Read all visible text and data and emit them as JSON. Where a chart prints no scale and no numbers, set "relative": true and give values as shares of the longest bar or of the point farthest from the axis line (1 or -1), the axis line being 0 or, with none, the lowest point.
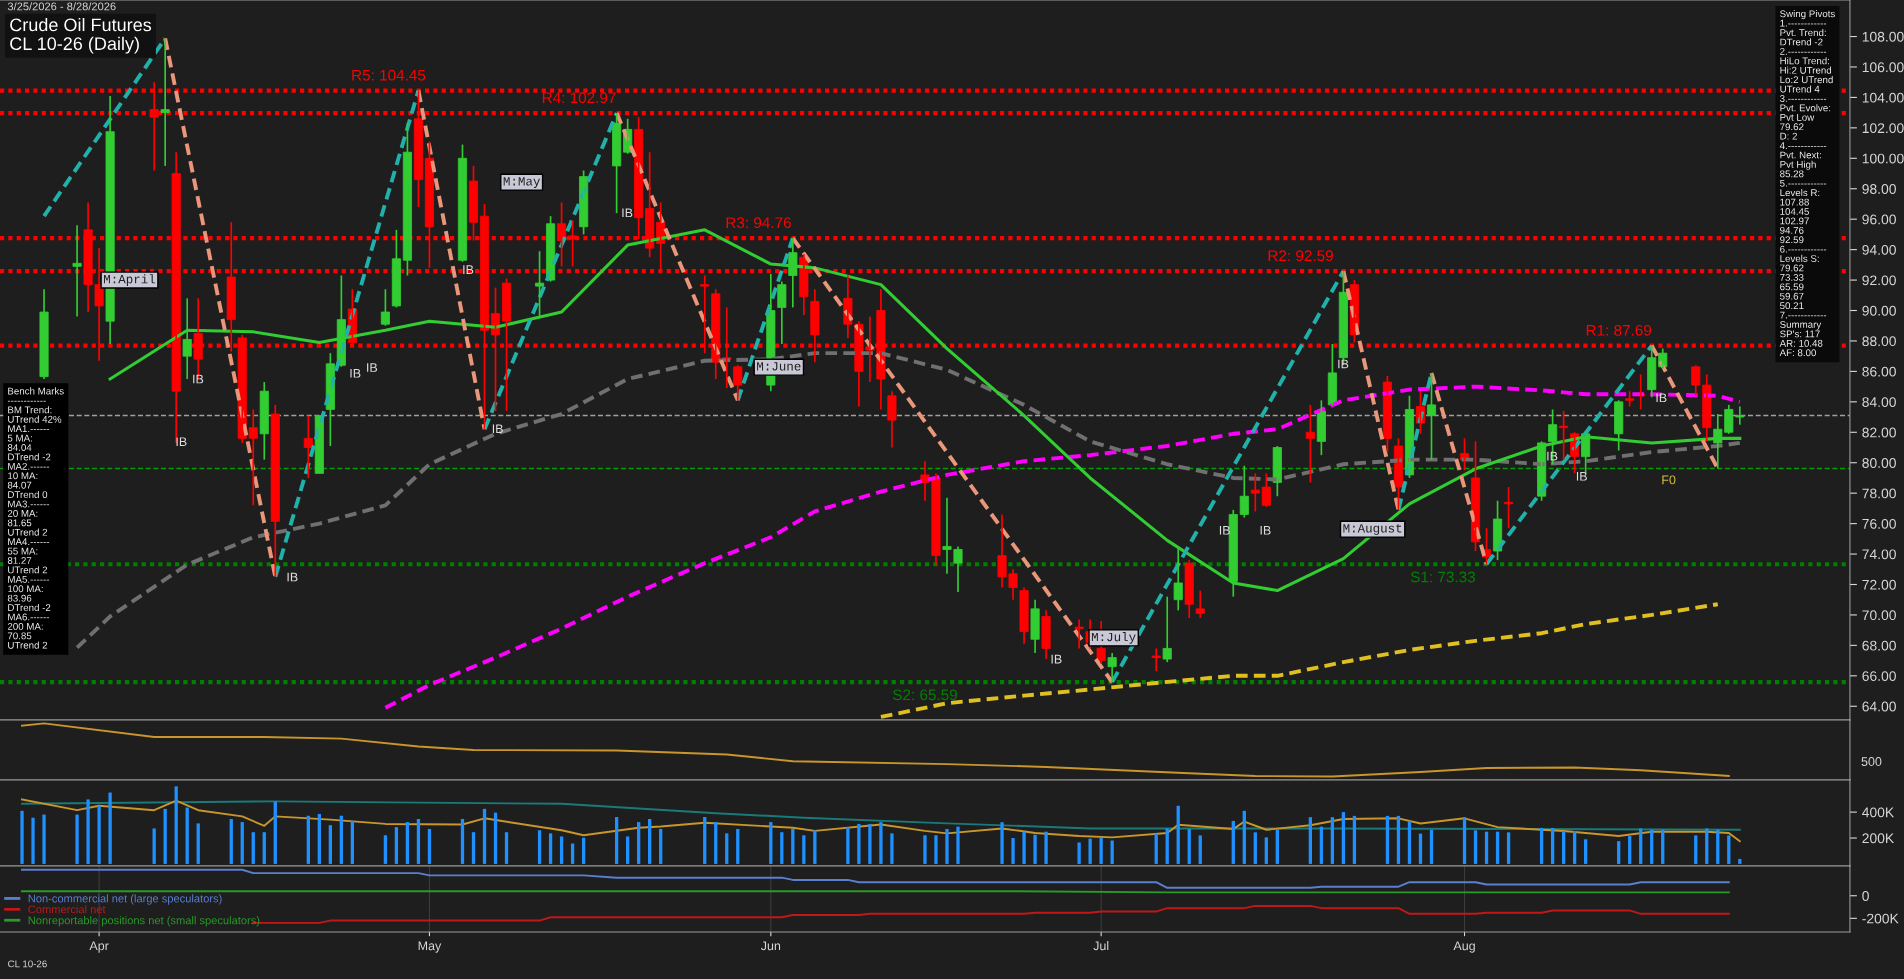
{
  "chart_data": [
    {
      "type": "candlestick",
      "title": "Crude Oil Futures\nCL 10-26 (Daily)",
      "x": [
        "2026-03-27",
        "2026-03-30",
        "2026-03-31",
        "2026-04-01",
        "2026-04-02",
        "2026-04-06",
        "2026-04-07",
        "2026-04-08",
        "2026-04-09",
        "2026-04-10",
        "2026-04-13",
        "2026-04-14",
        "2026-04-15",
        "2026-04-16",
        "2026-04-17",
        "2026-04-20",
        "2026-04-21",
        "2026-04-22",
        "2026-04-23",
        "2026-04-24",
        "2026-04-27",
        "2026-04-28",
        "2026-04-29",
        "2026-04-30",
        "2026-05-01",
        "2026-05-04",
        "2026-05-05",
        "2026-05-06",
        "2026-05-07",
        "2026-05-08",
        "2026-05-11",
        "2026-05-12",
        "2026-05-13",
        "2026-05-14",
        "2026-05-15",
        "2026-05-18",
        "2026-05-19",
        "2026-05-20",
        "2026-05-21",
        "2026-05-22",
        "2026-05-26",
        "2026-05-27",
        "2026-05-28",
        "2026-05-29",
        "2026-06-01",
        "2026-06-02",
        "2026-06-03",
        "2026-06-04",
        "2026-06-05",
        "2026-06-08",
        "2026-06-09",
        "2026-06-10",
        "2026-06-11",
        "2026-06-12",
        "2026-06-15",
        "2026-06-16",
        "2026-06-17",
        "2026-06-18",
        "2026-06-22",
        "2026-06-23",
        "2026-06-24",
        "2026-06-25",
        "2026-06-26",
        "2026-06-29",
        "2026-06-30",
        "2026-07-01",
        "2026-07-02",
        "2026-07-06",
        "2026-07-07",
        "2026-07-08",
        "2026-07-09",
        "2026-07-10",
        "2026-07-13",
        "2026-07-14",
        "2026-07-15",
        "2026-07-16",
        "2026-07-17",
        "2026-07-20",
        "2026-07-21",
        "2026-07-22",
        "2026-07-23",
        "2026-07-24",
        "2026-07-27",
        "2026-07-28",
        "2026-07-29",
        "2026-07-30",
        "2026-07-31",
        "2026-08-03",
        "2026-08-04",
        "2026-08-05",
        "2026-08-06",
        "2026-08-07",
        "2026-08-10",
        "2026-08-11",
        "2026-08-12",
        "2026-08-13",
        "2026-08-14",
        "2026-08-17",
        "2026-08-18",
        "2026-08-19",
        "2026-08-20",
        "2026-08-21",
        "2026-08-24",
        "2026-08-25",
        "2026-08-26",
        "2026-08-27",
        "2026-08-28"
      ],
      "ohlc": [
        [
          85.66,
          91.4,
          85.5,
          89.9
        ],
        [
          92.9,
          95.6,
          89.6,
          93.1
        ],
        [
          95.3,
          97.1,
          89.9,
          91.7
        ],
        [
          91.7,
          94.1,
          86.7,
          90.3
        ],
        [
          89.3,
          104.1,
          87.8,
          101.75
        ],
        [
          103.2,
          105.0,
          99.2,
          102.7
        ],
        [
          103.0,
          107.88,
          99.5,
          103.2
        ],
        [
          99.0,
          100.4,
          81.3,
          84.7
        ],
        [
          87.0,
          90.8,
          85.5,
          88.1
        ],
        [
          88.5,
          90.8,
          85.5,
          86.8
        ],
        [
          92.2,
          95.8,
          87.3,
          89.4
        ],
        [
          88.2,
          88.4,
          81.3,
          81.6
        ],
        [
          82.3,
          83.5,
          77.2,
          81.6
        ],
        [
          81.9,
          85.3,
          80.2,
          84.7
        ],
        [
          83.2,
          83.8,
          72.5,
          76.15
        ],
        [
          81.6,
          83.1,
          79.0,
          81.0
        ],
        [
          79.3,
          83.1,
          79.3,
          83.1
        ],
        [
          83.5,
          87.2,
          81.1,
          86.5
        ],
        [
          86.4,
          92.3,
          86.3,
          89.4
        ],
        [
          90.1,
          91.4,
          87.8,
          87.9
        ],
        [
          89.1,
          91.4,
          89.0,
          89.9
        ],
        [
          90.3,
          95.3,
          90.2,
          93.4
        ],
        [
          93.3,
          102.3,
          92.3,
          100.4
        ],
        [
          102.6,
          104.45,
          96.8,
          98.6
        ],
        [
          100.0,
          101.1,
          92.8,
          95.5
        ],
        [
          93.3,
          100.9,
          93.2,
          100.0
        ],
        [
          98.5,
          99.5,
          94.6,
          95.8
        ],
        [
          96.2,
          97.0,
          82.2,
          88.7
        ],
        [
          89.8,
          91.5,
          83.4,
          88.4
        ],
        [
          91.8,
          92.1,
          83.4,
          89.3
        ],
        [
          91.6,
          93.9,
          89.6,
          91.8
        ],
        [
          92.0,
          96.2,
          91.9,
          95.7
        ],
        [
          95.7,
          97.1,
          92.9,
          94.6
        ],
        [
          94.9,
          95.9,
          92.9,
          94.7
        ],
        [
          95.5,
          99.2,
          95.0,
          98.8
        ],
        [
          99.5,
          102.97,
          96.4,
          102.3
        ],
        [
          100.4,
          102.6,
          100.3,
          101.9
        ],
        [
          101.9,
          102.7,
          94.7,
          96.1
        ],
        [
          96.7,
          100.4,
          93.5,
          94.1
        ],
        [
          95.8,
          97.1,
          92.6,
          94.4
        ],
        [
          91.7,
          92.3,
          87.2,
          91.6
        ],
        [
          91.1,
          91.4,
          85.5,
          86.6
        ],
        [
          86.9,
          90.2,
          84.9,
          86.8
        ],
        [
          86.3,
          86.4,
          84.1,
          85.1
        ],
        [
          85.1,
          92.4,
          84.7,
          90.0
        ],
        [
          90.2,
          91.9,
          87.8,
          91.7
        ],
        [
          92.3,
          94.76,
          90.2,
          93.8
        ],
        [
          93.5,
          93.7,
          89.7,
          90.9
        ],
        [
          90.6,
          91.4,
          86.6,
          88.4
        ],
        [
          90.8,
          92.3,
          88.2,
          89.1
        ],
        [
          89.1,
          89.3,
          83.7,
          86.0
        ],
        [
          87.6,
          89.6,
          85.3,
          87.4
        ],
        [
          90.0,
          91.4,
          83.5,
          85.5
        ],
        [
          84.4,
          84.7,
          81.0,
          82.8
        ],
        [
          79.2,
          80.1,
          77.5,
          78.7
        ],
        [
          79.0,
          79.3,
          73.3,
          73.9
        ],
        [
          74.3,
          77.7,
          72.7,
          74.5
        ],
        [
          73.4,
          74.5,
          71.5,
          74.3
        ],
        [
          73.9,
          76.6,
          71.8,
          72.5
        ],
        [
          72.7,
          73.0,
          71.0,
          71.8
        ],
        [
          71.6,
          71.8,
          68.1,
          68.9
        ],
        [
          68.4,
          71.0,
          67.5,
          70.4
        ],
        [
          69.9,
          70.3,
          67.1,
          67.8
        ],
        [
          69.2,
          69.7,
          67.8,
          69.1
        ],
        [
          68.9,
          69.7,
          67.8,
          68.2
        ],
        [
          67.8,
          69.6,
          66.8,
          67.0
        ],
        [
          66.6,
          67.5,
          65.59,
          67.2
        ],
        [
          67.3,
          67.8,
          66.3,
          67.2
        ],
        [
          67.1,
          71.2,
          66.9,
          67.8
        ],
        [
          71.0,
          74.5,
          70.3,
          72.1
        ],
        [
          73.4,
          73.6,
          69.8,
          70.7
        ],
        [
          70.4,
          71.6,
          69.8,
          70.1
        ],
        [
          72.2,
          76.9,
          71.2,
          76.6
        ],
        [
          76.6,
          79.8,
          76.4,
          77.8
        ],
        [
          78.2,
          79.3,
          76.8,
          78.0
        ],
        [
          78.4,
          79.3,
          77.1,
          77.2
        ],
        [
          78.7,
          81.1,
          77.8,
          81.0
        ],
        [
          82.0,
          83.8,
          78.7,
          81.6
        ],
        [
          81.4,
          84.1,
          80.5,
          83.4
        ],
        [
          83.8,
          87.8,
          83.8,
          85.9
        ],
        [
          86.9,
          92.59,
          86.4,
          91.2
        ],
        [
          91.7,
          92.0,
          87.9,
          88.4
        ],
        [
          85.3,
          85.7,
          80.7,
          81.6
        ],
        [
          81.1,
          81.6,
          76.9,
          78.4
        ],
        [
          79.2,
          84.4,
          79.0,
          83.5
        ],
        [
          83.7,
          84.7,
          81.9,
          82.6
        ],
        [
          83.1,
          85.9,
          80.2,
          83.8
        ],
        [
          80.6,
          81.6,
          79.5,
          80.2
        ],
        [
          79.0,
          81.4,
          74.2,
          74.8
        ],
        [
          74.3,
          75.7,
          73.33,
          73.8
        ],
        [
          74.2,
          77.5,
          73.6,
          76.3
        ],
        [
          77.4,
          78.4,
          75.7,
          77.3
        ],
        [
          77.8,
          81.4,
          77.5,
          81.3
        ],
        [
          81.4,
          83.5,
          79.9,
          82.5
        ],
        [
          82.4,
          83.4,
          80.2,
          82.3
        ],
        [
          81.9,
          82.0,
          79.3,
          80.4
        ],
        [
          80.4,
          82.0,
          79.3,
          81.9
        ],
        [
          81.9,
          84.1,
          80.8,
          84.0
        ],
        [
          84.2,
          84.7,
          83.7,
          84.1
        ],
        [
          84.5,
          85.8,
          83.5,
          84.4
        ],
        [
          84.8,
          87.69,
          84.3,
          86.9
        ],
        [
          86.3,
          87.5,
          86.2,
          87.2
        ],
        [
          86.3,
          86.4,
          84.4,
          85.1
        ],
        [
          85.1,
          85.8,
          81.4,
          82.3
        ],
        [
          81.3,
          83.2,
          79.62,
          82.2
        ],
        [
          82.0,
          83.8,
          81.9,
          83.5
        ],
        [
          83.0,
          83.7,
          82.5,
          83.1
        ]
      ],
      "colors": [
        "#32cd32",
        "#32cd32",
        "#ff0000",
        "#ff0000",
        "#32cd32",
        "#ff0000",
        "#32cd32",
        "#ff0000",
        "#32cd32",
        "#ff0000",
        "#ff0000",
        "#ff0000",
        "#ff0000",
        "#32cd32",
        "#ff0000",
        "#ff0000",
        "#32cd32",
        "#32cd32",
        "#32cd32",
        "#ff0000",
        "#32cd32",
        "#32cd32",
        "#32cd32",
        "#ff0000",
        "#ff0000",
        "#32cd32",
        "#ff0000",
        "#ff0000",
        "#ff0000",
        "#ff0000",
        "#32cd32",
        "#32cd32",
        "#ff0000",
        "#ff0000",
        "#32cd32",
        "#32cd32",
        "#32cd32",
        "#ff0000",
        "#ff0000",
        "#ff0000",
        "#ff0000",
        "#ff0000",
        "#ff0000",
        "#ff0000",
        "#32cd32",
        "#32cd32",
        "#32cd32",
        "#ff0000",
        "#ff0000",
        "#ff0000",
        "#ff0000",
        "#ff0000",
        "#ff0000",
        "#ff0000",
        "#ff0000",
        "#ff0000",
        "#32cd32",
        "#32cd32",
        "#ff0000",
        "#ff0000",
        "#ff0000",
        "#32cd32",
        "#ff0000",
        "#ff0000",
        "#ff0000",
        "#ff0000",
        "#32cd32",
        "#ff0000",
        "#32cd32",
        "#32cd32",
        "#ff0000",
        "#ff0000",
        "#32cd32",
        "#32cd32",
        "#ff0000",
        "#ff0000",
        "#32cd32",
        "#ff0000",
        "#32cd32",
        "#32cd32",
        "#32cd32",
        "#ff0000",
        "#ff0000",
        "#ff0000",
        "#32cd32",
        "#ff0000",
        "#32cd32",
        "#ff0000",
        "#ff0000",
        "#ff0000",
        "#32cd32",
        "#ff0000",
        "#32cd32",
        "#32cd32",
        "#ff0000",
        "#ff0000",
        "#32cd32",
        "#32cd32",
        "#ff0000",
        "#ff0000",
        "#32cd32",
        "#32cd32",
        "#ff0000",
        "#ff0000",
        "#32cd32",
        "#32cd32",
        "#32cd32"
      ],
      "series": [
        {
          "type": "line",
          "color": "#e0c020",
          "line_style": "dashed",
          "x": [
            "2026-06-11",
            "2026-06-17",
            "2026-06-24",
            "2026-06-30",
            "2026-07-07",
            "2026-07-13",
            "2026-07-17",
            "2026-07-23",
            "2026-07-29",
            "2026-08-04",
            "2026-08-10",
            "2026-08-14",
            "2026-08-20",
            "2026-08-26"
          ],
          "values": [
            63.3,
            64.2,
            64.7,
            65.1,
            65.6,
            66.0,
            66.0,
            66.9,
            67.7,
            68.3,
            68.8,
            69.4,
            70.0,
            70.7
          ]
        },
        {
          "type": "line",
          "color": "#ff00ff",
          "line_style": "dashed",
          "x": [
            "2026-04-27",
            "2026-05-01",
            "2026-05-07",
            "2026-05-13",
            "2026-05-19",
            "2026-05-26",
            "2026-06-01",
            "2026-06-05",
            "2026-06-11",
            "2026-06-17",
            "2026-06-24",
            "2026-06-30",
            "2026-07-07",
            "2026-07-13",
            "2026-07-17",
            "2026-07-23",
            "2026-07-29",
            "2026-08-04",
            "2026-08-10",
            "2026-08-14",
            "2026-08-20",
            "2026-08-26",
            "2026-08-28"
          ],
          "values": [
            63.9,
            65.4,
            67.2,
            69.1,
            71.2,
            73.4,
            75.1,
            76.8,
            78.1,
            79.2,
            80.1,
            80.5,
            81.1,
            81.9,
            82.2,
            84.1,
            84.8,
            85.0,
            84.75,
            84.5,
            84.5,
            84.4,
            84.0
          ]
        },
        {
          "type": "line",
          "color": "#707070",
          "line_style": "dashed",
          "x": [
            "2026-03-30",
            "2026-04-02",
            "2026-04-09",
            "2026-04-15",
            "2026-04-21",
            "2026-04-27",
            "2026-05-01",
            "2026-05-07",
            "2026-05-13",
            "2026-05-19",
            "2026-05-26",
            "2026-06-01",
            "2026-06-05",
            "2026-06-11",
            "2026-06-17",
            "2026-06-24",
            "2026-06-30",
            "2026-07-07",
            "2026-07-13",
            "2026-07-17",
            "2026-07-23",
            "2026-07-29",
            "2026-08-04",
            "2026-08-10",
            "2026-08-14",
            "2026-08-20",
            "2026-08-26",
            "2026-08-28"
          ],
          "values": [
            67.85,
            69.9,
            73.3,
            75.1,
            76.0,
            77.2,
            79.9,
            81.9,
            83.2,
            85.5,
            86.7,
            86.8,
            87.2,
            87.2,
            86.1,
            83.8,
            81.4,
            79.9,
            79.0,
            78.9,
            79.9,
            80.2,
            80.2,
            79.9,
            80.1,
            80.7,
            81.1,
            81.3
          ]
        },
        {
          "type": "line",
          "color": "#32cd32",
          "line_style": "solid",
          "x": [
            "2026-04-02",
            "2026-04-09",
            "2026-04-15",
            "2026-04-21",
            "2026-04-27",
            "2026-05-01",
            "2026-05-07",
            "2026-05-13",
            "2026-05-19",
            "2026-05-26",
            "2026-06-01",
            "2026-06-05",
            "2026-06-11",
            "2026-06-17",
            "2026-06-24",
            "2026-06-30",
            "2026-07-07",
            "2026-07-13",
            "2026-07-17",
            "2026-07-23",
            "2026-07-29",
            "2026-08-04",
            "2026-08-10",
            "2026-08-14",
            "2026-08-20",
            "2026-08-26",
            "2026-08-28"
          ],
          "values": [
            85.5,
            88.7,
            88.6,
            87.9,
            88.7,
            89.3,
            88.9,
            89.9,
            94.3,
            95.3,
            93.05,
            92.8,
            91.7,
            87.5,
            83.1,
            79.0,
            74.9,
            72.1,
            71.6,
            73.7,
            77.3,
            79.6,
            81.1,
            81.7,
            81.3,
            81.6,
            81.6
          ]
        },
        {
          "type": "line",
          "color": "#20b2aa",
          "line_style": "dashed",
          "x": [
            "2026-03-27",
            "2026-04-07",
            "2026-04-13",
            "2026-04-17",
            "2026-04-30",
            "2026-05-04",
            "2026-05-06",
            "2026-05-18",
            "2026-05-26",
            "2026-05-29",
            "2026-06-03",
            "2026-06-09",
            "2026-07-02",
            "2026-07-23",
            "2026-07-24",
            "2026-07-28",
            "2026-07-31",
            "2026-08-03",
            "2026-08-05",
            "2026-08-20"
          ],
          "values": [
            96.2,
            107.88,
            null,
            72.5,
            104.45,
            null,
            82.2,
            102.97,
            null,
            84.1,
            94.76,
            null,
            65.59,
            92.59,
            null,
            76.9,
            85.9,
            null,
            73.33,
            87.69
          ]
        },
        {
          "type": "line",
          "color": "#e9967a",
          "line_style": "dashed",
          "x": [
            "2026-04-07",
            "2026-04-17",
            "2026-04-24",
            "2026-04-30",
            "2026-05-06",
            "2026-05-11",
            "2026-05-18",
            "2026-05-29",
            "2026-06-01",
            "2026-06-03",
            "2026-07-02",
            "2026-07-06",
            "2026-07-23",
            "2026-07-28",
            "2026-07-29",
            "2026-07-31",
            "2026-08-05",
            "2026-08-10",
            "2026-08-20",
            "2026-08-26"
          ],
          "values": [
            107.88,
            72.5,
            null,
            104.45,
            82.2,
            null,
            102.97,
            84.1,
            null,
            94.76,
            65.59,
            null,
            92.59,
            76.9,
            null,
            85.9,
            73.33,
            null,
            87.69,
            79.62
          ]
        }
      ],
      "ref_lines": [
        {
          "axis": "y",
          "value": 104.45,
          "label": "R5: 104.45",
          "color": "#ff0000",
          "line_style": "dotted"
        },
        {
          "axis": "y",
          "value": 102.97,
          "label": "R4: 102.97",
          "color": "#ff0000",
          "line_style": "dotted"
        },
        {
          "axis": "y",
          "value": 94.76,
          "label": "R3: 94.76",
          "color": "#ff0000",
          "line_style": "dotted"
        },
        {
          "axis": "y",
          "value": 92.59,
          "label": "R2: 92.59",
          "color": "#ff0000",
          "line_style": "dotted"
        },
        {
          "axis": "y",
          "value": 87.69,
          "label": "R1: 87.69",
          "color": "#ff0000",
          "line_style": "dotted"
        },
        {
          "axis": "y",
          "value": 73.33,
          "label": "S1: 73.33",
          "color": "#008000",
          "line_style": "dotted"
        },
        {
          "axis": "y",
          "value": 65.59,
          "label": "S2: 65.59",
          "color": "#008000",
          "line_style": "dotted"
        },
        {
          "axis": "y",
          "value": 79.62,
          "color": "#00a000",
          "line_style": "dashed"
        },
        {
          "axis": "y",
          "value": 83.1,
          "color": "#a0a0a0",
          "line_style": "dashed"
        }
      ],
      "annotations": [
        "3/25/2026 - 8/28/2026",
        "Bench Marks\n------------\nBM Trend:\nUTrend 42%\nMA1.------\n5 MA:\n84.04\nDTrend -2\nMA2.------\n10 MA:\n84.07\nDTrend 0\nMA3.------\n20 MA:\n81.65\nUTrend 2\nMA4.------\n55 MA:\n81.27\nUTrend 2\nMA5.------\n100 MA:\n83.96\nDTrend -2\nMA6.------\n200 MA:\n70.85\nUTrend 2",
        "Swing Pivots\n1.------------\nPvt. Trend:\nDTrend -2\n2.------------\nHiLo Trend:\nHi:2 UTrend\nLo:2 UTrend\nUTrend 4\n3.------------\nPvt. Evolve:\nPvt Low\n79.62\nD: 2\n4.------------\nPvt. Next:\nPvt High\n85.28\n5.------------\nLevels R:\n107.88\n104.45\n102.97\n94.76\n92.59\n6.------------\nLevels S:\n79.62\n73.33\n65.59\n59.67\n50.21\n7.------------\nSummary\nSP's: 117\nAR: 10.48\nAF: 8.00",
        "CL 10-26",
        "M:April",
        "M:May",
        "M:June",
        "M:July",
        "M:August",
        "F0",
        "IB",
        "IB",
        "IB",
        "IB",
        "IB",
        "IB",
        "IB",
        "IB",
        "IB",
        "IB",
        "IB",
        "IB",
        "IB",
        "IB",
        "IB"
      ],
      "xlim": [
        "2026-03-23",
        "2026-09-07"
      ],
      "ylim": [
        63.1,
        110.4
      ],
      "yticks": [
        {
          "value": 64,
          "label": "64.00"
        },
        {
          "value": 66,
          "label": "66.00"
        },
        {
          "value": 68,
          "label": "68.00"
        },
        {
          "value": 70,
          "label": "70.00"
        },
        {
          "value": 72,
          "label": "72.00"
        },
        {
          "value": 74,
          "label": "74.00"
        },
        {
          "value": 76,
          "label": "76.00"
        },
        {
          "value": 78,
          "label": "78.00"
        },
        {
          "value": 80,
          "label": "80.00"
        },
        {
          "value": 82,
          "label": "82.00"
        },
        {
          "value": 84,
          "label": "84.00"
        },
        {
          "value": 86,
          "label": "86.00"
        },
        {
          "value": 88,
          "label": "88.00"
        },
        {
          "value": 90,
          "label": "90.00"
        },
        {
          "value": 92,
          "label": "92.00"
        },
        {
          "value": 94,
          "label": "94.00"
        },
        {
          "value": 96,
          "label": "96.00"
        },
        {
          "value": 98,
          "label": "98.00"
        },
        {
          "value": 100,
          "label": "100.00"
        },
        {
          "value": 102,
          "label": "102.00"
        },
        {
          "value": 104,
          "label": "104.00"
        },
        {
          "value": 106,
          "label": "106.00"
        },
        {
          "value": 108,
          "label": "108.00"
        }
      ],
      "tick_labels": "y"
    },
    {
      "type": "line",
      "relative": true,
      "series": [
        {
          "color": "#c8962a",
          "x": [
            "2026-03-25",
            "2026-03-27",
            "2026-04-06",
            "2026-04-16",
            "2026-04-23",
            "2026-04-30",
            "2026-05-05",
            "2026-05-18",
            "2026-05-28",
            "2026-06-03",
            "2026-06-17",
            "2026-06-26",
            "2026-07-09",
            "2026-07-15",
            "2026-07-22",
            "2026-07-30",
            "2026-08-05",
            "2026-08-13",
            "2026-08-19",
            "2026-08-27"
          ],
          "values": [
            0.96,
            1.0,
            0.76,
            0.76,
            0.73,
            0.59,
            0.53,
            0.52,
            0.45,
            0.33,
            0.28,
            0.23,
            0.12,
            0.07,
            0.06,
            0.14,
            0.21,
            0.22,
            0.17,
            0.07
          ]
        }
      ],
      "annotations": [
        "500"
      ],
      "xlim": [
        "2026-03-23",
        "2026-09-07"
      ],
      "tick_labels": false
    },
    {
      "type": "bar",
      "x": [
        "2026-03-25",
        "2026-03-26",
        "2026-03-27",
        "2026-03-30",
        "2026-03-31",
        "2026-04-01",
        "2026-04-02",
        "2026-04-06",
        "2026-04-07",
        "2026-04-08",
        "2026-04-09",
        "2026-04-10",
        "2026-04-13",
        "2026-04-14",
        "2026-04-15",
        "2026-04-16",
        "2026-04-17",
        "2026-04-20",
        "2026-04-21",
        "2026-04-22",
        "2026-04-23",
        "2026-04-24",
        "2026-04-27",
        "2026-04-28",
        "2026-04-29",
        "2026-04-30",
        "2026-05-01",
        "2026-05-04",
        "2026-05-05",
        "2026-05-06",
        "2026-05-07",
        "2026-05-08",
        "2026-05-11",
        "2026-05-12",
        "2026-05-13",
        "2026-05-14",
        "2026-05-15",
        "2026-05-18",
        "2026-05-19",
        "2026-05-20",
        "2026-05-21",
        "2026-05-22",
        "2026-05-26",
        "2026-05-27",
        "2026-05-28",
        "2026-05-29",
        "2026-06-01",
        "2026-06-02",
        "2026-06-03",
        "2026-06-04",
        "2026-06-05",
        "2026-06-08",
        "2026-06-09",
        "2026-06-10",
        "2026-06-11",
        "2026-06-12",
        "2026-06-15",
        "2026-06-16",
        "2026-06-17",
        "2026-06-18",
        "2026-06-22",
        "2026-06-23",
        "2026-06-24",
        "2026-06-25",
        "2026-06-26",
        "2026-06-29",
        "2026-06-30",
        "2026-07-01",
        "2026-07-02",
        "2026-07-06",
        "2026-07-07",
        "2026-07-08",
        "2026-07-09",
        "2026-07-10",
        "2026-07-13",
        "2026-07-14",
        "2026-07-15",
        "2026-07-16",
        "2026-07-17",
        "2026-07-20",
        "2026-07-21",
        "2026-07-22",
        "2026-07-23",
        "2026-07-24",
        "2026-07-27",
        "2026-07-28",
        "2026-07-29",
        "2026-07-30",
        "2026-07-31",
        "2026-08-03",
        "2026-08-04",
        "2026-08-05",
        "2026-08-06",
        "2026-08-07",
        "2026-08-10",
        "2026-08-11",
        "2026-08-12",
        "2026-08-13",
        "2026-08-14",
        "2026-08-17",
        "2026-08-18",
        "2026-08-19",
        "2026-08-20",
        "2026-08-21",
        "2026-08-24",
        "2026-08-25",
        "2026-08-26",
        "2026-08-27",
        "2026-08-28"
      ],
      "series": [
        {
          "type": "bar",
          "color": "#1e90ff",
          "values": [
            410000,
            357000,
            381000,
            381000,
            498000,
            449000,
            551000,
            274000,
            425000,
            599000,
            435000,
            313000,
            347000,
            323000,
            245000,
            245000,
            483000,
            372000,
            386000,
            299000,
            372000,
            333000,
            221000,
            284000,
            323000,
            347000,
            270000,
            347000,
            245000,
            425000,
            396000,
            245000,
            260000,
            236000,
            212000,
            158000,
            202000,
            362000,
            212000,
            323000,
            347000,
            270000,
            362000,
            323000,
            236000,
            270000,
            323000,
            245000,
            270000,
            221000,
            260000,
            284000,
            309000,
            309000,
            323000,
            236000,
            221000,
            221000,
            270000,
            288000,
            322000,
            200000,
            249000,
            225000,
            249000,
            166000,
            195000,
            200000,
            181000,
            234000,
            274000,
            449000,
            269000,
            220000,
            332000,
            410000,
            244000,
            205000,
            264000,
            361000,
            288000,
            361000,
            400000,
            371000,
            371000,
            371000,
            332000,
            234000,
            264000,
            361000,
            259000,
            249000,
            249000,
            244000,
            278000,
            278000,
            254000,
            254000,
            190000,
            176000,
            215000,
            274000,
            264000,
            264000,
            220000,
            274000,
            264000,
            220000,
            39000
          ]
        },
        {
          "type": "line",
          "color": "#1a7a7a",
          "x": [
            "2026-03-25",
            "2026-04-17",
            "2026-05-13",
            "2026-05-27",
            "2026-06-04",
            "2026-06-17",
            "2026-06-30",
            "2026-07-21",
            "2026-08-28"
          ],
          "values": [
            464000,
            483000,
            464000,
            391000,
            357000,
            313000,
            274000,
            274000,
            264000
          ]
        },
        {
          "type": "line",
          "color": "#c8962a",
          "x": [
            "2026-03-25",
            "2026-03-30",
            "2026-04-01",
            "2026-04-06",
            "2026-04-08",
            "2026-04-10",
            "2026-04-14",
            "2026-04-16",
            "2026-04-17",
            "2026-04-22",
            "2026-04-27",
            "2026-05-04",
            "2026-05-06",
            "2026-05-13",
            "2026-05-15",
            "2026-05-20",
            "2026-05-22",
            "2026-05-26",
            "2026-06-03",
            "2026-06-05",
            "2026-06-11",
            "2026-06-15",
            "2026-06-17",
            "2026-06-22",
            "2026-06-25",
            "2026-06-29",
            "2026-07-02",
            "2026-07-07",
            "2026-07-08",
            "2026-07-13",
            "2026-07-14",
            "2026-07-16",
            "2026-07-20",
            "2026-07-23",
            "2026-07-28",
            "2026-07-30",
            "2026-08-03",
            "2026-08-06",
            "2026-08-12",
            "2026-08-17",
            "2026-08-20",
            "2026-08-25",
            "2026-08-27",
            "2026-08-28"
          ],
          "values": [
            498000,
            415000,
            449000,
            415000,
            488000,
            415000,
            367000,
            294000,
            367000,
            342000,
            309000,
            304000,
            352000,
            260000,
            221000,
            279000,
            289000,
            318000,
            279000,
            255000,
            304000,
            255000,
            236000,
            274000,
            239000,
            215000,
            205000,
            239000,
            303000,
            269000,
            327000,
            264000,
            298000,
            347000,
            352000,
            312000,
            352000,
            284000,
            254000,
            215000,
            249000,
            249000,
            239000,
            176000
          ]
        }
      ],
      "xlim": [
        "2026-03-23",
        "2026-09-07"
      ],
      "ylim": [
        -16000,
        648000
      ],
      "yticks": [
        {
          "value": 200000,
          "label": "200K"
        },
        {
          "value": 400000,
          "label": "400K"
        }
      ],
      "tick_labels": "y"
    },
    {
      "type": "line",
      "legend": "bottom left",
      "grid": "x",
      "series": [
        {
          "name": "Non-commercial net (large speculators)",
          "color": "#5b7fd0",
          "x": [
            "2026-03-25",
            "2026-04-14",
            "2026-04-15",
            "2026-04-30",
            "2026-05-01",
            "2026-05-15",
            "2026-05-18",
            "2026-06-02",
            "2026-06-03",
            "2026-06-08",
            "2026-06-09",
            "2026-07-06",
            "2026-07-07",
            "2026-07-20",
            "2026-07-21",
            "2026-07-28",
            "2026-07-29",
            "2026-08-04",
            "2026-08-05",
            "2026-08-18",
            "2026-08-19",
            "2026-08-27"
          ],
          "values": [
            230000,
            230000,
            200000,
            200000,
            180000,
            180000,
            160000,
            160000,
            140000,
            140000,
            120000,
            120000,
            70000,
            70000,
            80000,
            80000,
            120000,
            120000,
            100000,
            100000,
            120000,
            120000
          ]
        },
        {
          "name": "Commercial net",
          "color": "#c01818",
          "x": [
            "2026-04-15",
            "2026-04-21",
            "2026-04-22",
            "2026-05-11",
            "2026-05-12",
            "2026-06-02",
            "2026-06-03",
            "2026-06-09",
            "2026-06-10",
            "2026-06-24",
            "2026-06-25",
            "2026-06-30",
            "2026-07-01",
            "2026-07-06",
            "2026-07-07",
            "2026-07-14",
            "2026-07-15",
            "2026-07-20",
            "2026-07-21",
            "2026-07-28",
            "2026-07-29",
            "2026-08-04",
            "2026-08-05",
            "2026-08-10",
            "2026-08-11",
            "2026-08-18",
            "2026-08-19",
            "2026-08-27"
          ],
          "values": [
            -240000,
            -240000,
            -220000,
            -220000,
            -190000,
            -190000,
            -170000,
            -170000,
            -160000,
            -160000,
            -150000,
            -150000,
            -140000,
            -140000,
            -110000,
            -110000,
            -90000,
            -90000,
            -110000,
            -110000,
            -160000,
            -160000,
            -150000,
            -150000,
            -130000,
            -130000,
            -160000,
            -160000
          ]
        },
        {
          "name": "Nonreportable positions net (small speculators)",
          "color": "#2a9a2a",
          "x": [
            "2026-03-25",
            "2026-06-22",
            "2026-07-07",
            "2026-07-14",
            "2026-07-21",
            "2026-08-27"
          ],
          "values": [
            40000,
            40000,
            30000,
            30000,
            30000,
            30000
          ]
        }
      ],
      "xlim": [
        "2026-03-23",
        "2026-09-07"
      ],
      "ylim": [
        -321000,
        263000
      ],
      "xticks": [
        {
          "value": "2026-04-01",
          "label": "Apr"
        },
        {
          "value": "2026-05-01",
          "label": "May"
        },
        {
          "value": "2026-06-01",
          "label": "Jun"
        },
        {
          "value": "2026-07-01",
          "label": "Jul"
        },
        {
          "value": "2026-08-03",
          "label": "Aug"
        }
      ],
      "yticks": [
        {
          "value": 0,
          "label": "0"
        },
        {
          "value": -200000,
          "label": "-200K"
        }
      ]
    }
  ]
}
